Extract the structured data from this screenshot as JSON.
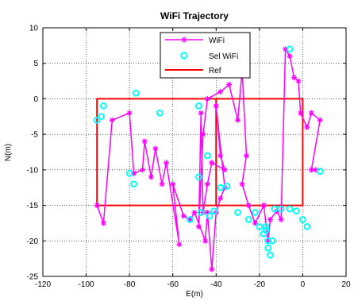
{
  "chart_data": {
    "type": "line",
    "title": "WiFi Trajectory",
    "xlabel": "E(m)",
    "ylabel": "N(m)",
    "xlim": [
      -120,
      20
    ],
    "ylim": [
      -25,
      10
    ],
    "xticks": [
      -120,
      -100,
      -80,
      -60,
      -40,
      -20,
      0,
      20
    ],
    "yticks": [
      -25,
      -20,
      -15,
      -10,
      -5,
      0,
      5,
      10
    ],
    "grid": true,
    "legend": {
      "placement": "top-center",
      "entries": [
        "WiFi",
        "Sel WiFi",
        "Ref"
      ]
    },
    "colors": {
      "wifi": "#ff00ff",
      "sel": "#00ffff",
      "ref": "#ff0000"
    },
    "series": [
      {
        "name": "WiFi",
        "marker": "star",
        "points": [
          [
            -95,
            -15
          ],
          [
            -92,
            -17.5
          ],
          [
            -88,
            -3
          ],
          [
            -80,
            -2
          ],
          [
            -78,
            -10.5
          ],
          [
            -74,
            -10
          ],
          [
            -73,
            -6
          ],
          [
            -70,
            -11
          ],
          [
            -68,
            -7
          ],
          [
            -65,
            -12
          ],
          [
            -63,
            -9
          ],
          [
            -57,
            -20.5
          ],
          [
            -60,
            -12
          ],
          [
            -55,
            -16.5
          ],
          [
            -52,
            -17
          ],
          [
            -50,
            -16
          ],
          [
            -45,
            -20
          ],
          [
            -44,
            -16
          ],
          [
            -42,
            -24
          ],
          [
            -40,
            -16
          ],
          [
            -38,
            -14
          ],
          [
            -36,
            -12.5
          ],
          [
            -40,
            -1
          ],
          [
            -38,
            -8
          ],
          [
            -36,
            -10
          ],
          [
            -42,
            -9
          ],
          [
            -44,
            -12
          ],
          [
            -46,
            -16
          ],
          [
            -47,
            -2
          ],
          [
            -48,
            -18
          ],
          [
            -46,
            -5
          ],
          [
            -44,
            0
          ],
          [
            -38,
            1
          ],
          [
            -34,
            2
          ],
          [
            -30,
            -3
          ],
          [
            -28,
            4
          ],
          [
            -26,
            -8
          ],
          [
            -28,
            -12
          ],
          [
            -25,
            -15
          ],
          [
            -22,
            -17.5
          ],
          [
            -18,
            -15
          ],
          [
            -16,
            -20
          ],
          [
            -15,
            -17
          ],
          [
            -12,
            -15.8
          ],
          [
            -10,
            -17
          ],
          [
            -8,
            7
          ],
          [
            -6,
            6
          ],
          [
            -4,
            3
          ],
          [
            -2,
            2.5
          ],
          [
            -1,
            -2
          ],
          [
            2,
            -4
          ],
          [
            4,
            -2
          ],
          [
            8,
            -3
          ],
          [
            4,
            -10
          ],
          [
            6,
            -10
          ]
        ]
      },
      {
        "name": "Sel WiFi",
        "marker": "circle",
        "points": [
          [
            -95,
            -3
          ],
          [
            -93,
            -2.5
          ],
          [
            -92,
            -1
          ],
          [
            -80,
            -10.5
          ],
          [
            -78,
            -12
          ],
          [
            -77,
            0.8
          ],
          [
            -66,
            -2
          ],
          [
            -52,
            -17
          ],
          [
            -48,
            -1
          ],
          [
            -48,
            -11
          ],
          [
            -47,
            -16
          ],
          [
            -44,
            -8
          ],
          [
            -43,
            -16.5
          ],
          [
            -41,
            -15.8
          ],
          [
            -38,
            -12.5
          ],
          [
            -35,
            -12.3
          ],
          [
            -30,
            -16
          ],
          [
            -25,
            -17
          ],
          [
            -22,
            -16
          ],
          [
            -20,
            -18
          ],
          [
            -18,
            -19
          ],
          [
            -17,
            -18.5
          ],
          [
            -16,
            -21
          ],
          [
            -15,
            -22
          ],
          [
            -14,
            -20
          ],
          [
            -13,
            -15.5
          ],
          [
            -10,
            -15.5
          ],
          [
            -6,
            -15.5
          ],
          [
            -3,
            -15.8
          ],
          [
            0,
            -17
          ],
          [
            2,
            -18
          ],
          [
            -6,
            7
          ],
          [
            8,
            -10.2
          ],
          [
            -17,
            -18
          ],
          [
            -16,
            -20
          ]
        ]
      },
      {
        "name": "Ref",
        "style": "line",
        "points": [
          [
            -95,
            0
          ],
          [
            0,
            0
          ],
          [
            0,
            -15
          ],
          [
            -95,
            -15
          ],
          [
            -95,
            0
          ],
          [
            -40,
            0
          ],
          [
            -40,
            -15
          ]
        ]
      }
    ]
  }
}
